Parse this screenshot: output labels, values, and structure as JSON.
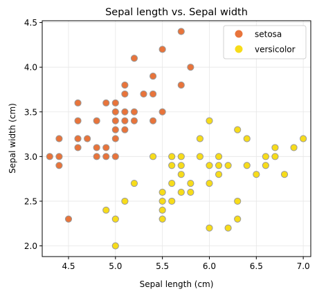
{
  "chart_data": {
    "type": "scatter",
    "title": "Sepal length vs. Sepal width",
    "xlabel": "Sepal length (cm)",
    "ylabel": "Sepal width (cm)",
    "xlim": [
      4.22,
      7.08
    ],
    "ylim": [
      1.88,
      4.52
    ],
    "xticks": [
      "4.5",
      "5.0",
      "5.5",
      "6.0",
      "6.5",
      "7.0"
    ],
    "yticks": [
      "2.0",
      "2.5",
      "3.0",
      "3.5",
      "4.0",
      "4.5"
    ],
    "grid": true,
    "legend_position": "top-right",
    "marker_edge_color": "#999999",
    "series": [
      {
        "name": "setosa",
        "color": "#e8743b",
        "points": [
          [
            4.3,
            3.0
          ],
          [
            4.4,
            2.9
          ],
          [
            4.4,
            3.0
          ],
          [
            4.4,
            3.2
          ],
          [
            4.5,
            2.3
          ],
          [
            4.6,
            3.1
          ],
          [
            4.6,
            3.2
          ],
          [
            4.6,
            3.4
          ],
          [
            4.6,
            3.6
          ],
          [
            4.7,
            3.2
          ],
          [
            4.8,
            3.0
          ],
          [
            4.8,
            3.1
          ],
          [
            4.8,
            3.4
          ],
          [
            4.9,
            3.0
          ],
          [
            4.9,
            3.1
          ],
          [
            4.9,
            3.6
          ],
          [
            5.0,
            3.0
          ],
          [
            5.0,
            3.2
          ],
          [
            5.0,
            3.3
          ],
          [
            5.0,
            3.4
          ],
          [
            5.0,
            3.5
          ],
          [
            5.0,
            3.6
          ],
          [
            5.1,
            3.3
          ],
          [
            5.1,
            3.4
          ],
          [
            5.1,
            3.5
          ],
          [
            5.1,
            3.7
          ],
          [
            5.1,
            3.8
          ],
          [
            5.2,
            3.4
          ],
          [
            5.2,
            3.5
          ],
          [
            5.2,
            4.1
          ],
          [
            5.3,
            3.7
          ],
          [
            5.4,
            3.4
          ],
          [
            5.4,
            3.7
          ],
          [
            5.4,
            3.9
          ],
          [
            5.5,
            3.5
          ],
          [
            5.5,
            4.2
          ],
          [
            5.7,
            3.8
          ],
          [
            5.7,
            4.4
          ],
          [
            5.8,
            4.0
          ]
        ]
      },
      {
        "name": "versicolor",
        "color": "#f7dc1a",
        "points": [
          [
            4.9,
            2.4
          ],
          [
            5.0,
            2.0
          ],
          [
            5.0,
            2.3
          ],
          [
            5.1,
            2.5
          ],
          [
            5.2,
            2.7
          ],
          [
            5.4,
            3.0
          ],
          [
            5.5,
            2.3
          ],
          [
            5.5,
            2.4
          ],
          [
            5.5,
            2.5
          ],
          [
            5.5,
            2.6
          ],
          [
            5.6,
            2.5
          ],
          [
            5.6,
            2.7
          ],
          [
            5.6,
            2.9
          ],
          [
            5.6,
            3.0
          ],
          [
            5.7,
            2.6
          ],
          [
            5.7,
            2.8
          ],
          [
            5.7,
            2.9
          ],
          [
            5.7,
            3.0
          ],
          [
            5.8,
            2.6
          ],
          [
            5.8,
            2.7
          ],
          [
            5.9,
            3.0
          ],
          [
            5.9,
            3.2
          ],
          [
            6.0,
            2.2
          ],
          [
            6.0,
            2.7
          ],
          [
            6.0,
            2.9
          ],
          [
            6.0,
            3.4
          ],
          [
            6.1,
            2.8
          ],
          [
            6.1,
            2.9
          ],
          [
            6.1,
            3.0
          ],
          [
            6.2,
            2.2
          ],
          [
            6.2,
            2.9
          ],
          [
            6.3,
            2.3
          ],
          [
            6.3,
            2.5
          ],
          [
            6.3,
            3.3
          ],
          [
            6.4,
            2.9
          ],
          [
            6.4,
            3.2
          ],
          [
            6.5,
            2.8
          ],
          [
            6.6,
            2.9
          ],
          [
            6.6,
            3.0
          ],
          [
            6.7,
            3.0
          ],
          [
            6.7,
            3.1
          ],
          [
            6.8,
            2.8
          ],
          [
            6.9,
            3.1
          ],
          [
            7.0,
            3.2
          ]
        ]
      }
    ]
  }
}
